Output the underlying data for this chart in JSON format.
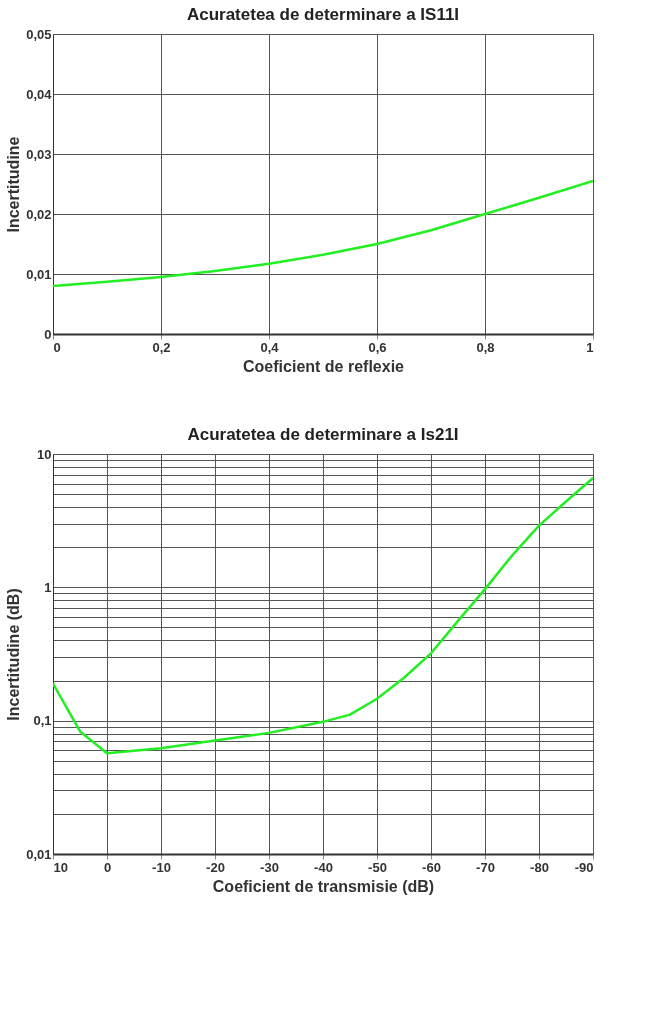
{
  "chart_data": [
    {
      "type": "line",
      "title": "Acuratetea de determinare a IS11I",
      "xlabel": "Coeficient de reflexie",
      "ylabel": "Incertitudine",
      "x": [
        0,
        0.1,
        0.2,
        0.3,
        0.4,
        0.5,
        0.6,
        0.7,
        0.8,
        0.9,
        1.0
      ],
      "series": [
        {
          "color": "#22ee22",
          "values": [
            0.008,
            0.0087,
            0.0095,
            0.0105,
            0.0117,
            0.0132,
            0.015,
            0.0173,
            0.02,
            0.0227,
            0.0255
          ]
        }
      ],
      "xlim": [
        0,
        1
      ],
      "xticks": [
        0,
        {
          "value": 0.2,
          "label": "0,2"
        },
        {
          "value": 0.4,
          "label": "0,4"
        },
        {
          "value": 0.6,
          "label": "0,6"
        },
        {
          "value": 0.8,
          "label": "0,8"
        },
        1
      ],
      "ylim": [
        0,
        0.05
      ],
      "yticks": [
        0,
        {
          "value": 0.01,
          "label": "0,01"
        },
        {
          "value": 0.02,
          "label": "0,02"
        },
        {
          "value": 0.03,
          "label": "0,03"
        },
        {
          "value": 0.04,
          "label": "0,04"
        },
        {
          "value": 0.05,
          "label": "0,05"
        }
      ],
      "grid": true,
      "marker": "none",
      "line_style": "solid"
    },
    {
      "type": "line",
      "title": "Acuratetea de determinare a Is21I",
      "xlabel": "Coeficient de transmisie (dB)",
      "ylabel": "Incertitudine (dB)",
      "x": [
        10,
        5,
        0,
        -10,
        -20,
        -30,
        -40,
        -45,
        -50,
        -55,
        -60,
        -65,
        -70,
        -75,
        -80,
        -85,
        -90
      ],
      "series": [
        {
          "color": "#22ee22",
          "values": [
            0.19,
            0.083,
            0.057,
            0.062,
            0.071,
            0.081,
            0.098,
            0.111,
            0.146,
            0.21,
            0.32,
            0.56,
            0.97,
            1.73,
            2.9,
            4.4,
            6.6
          ]
        }
      ],
      "xlim": [
        10,
        -90
      ],
      "xticks": [
        10,
        0,
        -10,
        -20,
        -30,
        -40,
        -50,
        -60,
        -70,
        -80,
        -90
      ],
      "ylim": [
        0.01,
        10
      ],
      "log": "y",
      "yticks": [
        {
          "value": 0.01,
          "label": "0,01"
        },
        {
          "value": 0.02,
          "label": null
        },
        {
          "value": 0.03,
          "label": null
        },
        {
          "value": 0.04,
          "label": null
        },
        {
          "value": 0.05,
          "label": null
        },
        {
          "value": 0.06,
          "label": null
        },
        {
          "value": 0.07,
          "label": null
        },
        {
          "value": 0.08,
          "label": null
        },
        {
          "value": 0.09,
          "label": null
        },
        {
          "value": 0.1,
          "label": "0,1"
        },
        {
          "value": 0.2,
          "label": null
        },
        {
          "value": 0.3,
          "label": null
        },
        {
          "value": 0.4,
          "label": null
        },
        {
          "value": 0.5,
          "label": null
        },
        {
          "value": 0.6,
          "label": null
        },
        {
          "value": 0.7,
          "label": null
        },
        {
          "value": 0.8,
          "label": null
        },
        {
          "value": 0.9,
          "label": null
        },
        1,
        {
          "value": 2,
          "label": null
        },
        {
          "value": 3,
          "label": null
        },
        {
          "value": 4,
          "label": null
        },
        {
          "value": 5,
          "label": null
        },
        {
          "value": 6,
          "label": null
        },
        {
          "value": 7,
          "label": null
        },
        {
          "value": 8,
          "label": null
        },
        {
          "value": 9,
          "label": null
        },
        10
      ],
      "grid": true,
      "marker": "none",
      "line_style": "solid"
    }
  ]
}
